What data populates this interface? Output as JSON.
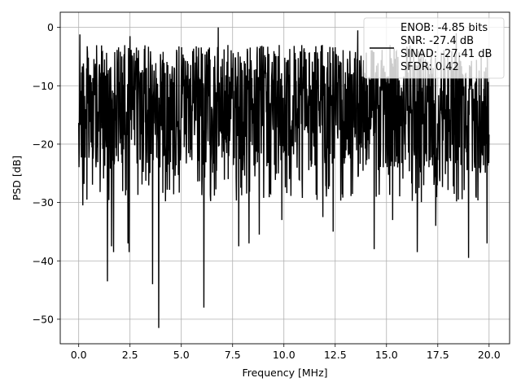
{
  "chart_data": {
    "type": "line",
    "xlabel": "Frequency [MHz]",
    "ylabel": "PSD [dB]",
    "xlim": [
      -0.9,
      21.0
    ],
    "ylim": [
      -54.2,
      2.6
    ],
    "xticks": [
      0.0,
      2.5,
      5.0,
      7.5,
      10.0,
      12.5,
      15.0,
      17.5,
      20.0
    ],
    "xtick_labels": [
      "0.0",
      "2.5",
      "5.0",
      "7.5",
      "10.0",
      "12.5",
      "15.0",
      "17.5",
      "20.0"
    ],
    "yticks": [
      0,
      -10,
      -20,
      -30,
      -40,
      -50
    ],
    "ytick_labels": [
      "0",
      "−10",
      "−20",
      "−30",
      "−40",
      "−50"
    ],
    "grid": true,
    "line_color": "#000000",
    "legend_position": "top-right",
    "legend_lines": [
      "ENOB: -4.85 bits",
      "SNR: -27.4 dB",
      "SINAD: -27.41 dB",
      "SFDR: 0.42"
    ],
    "series": [
      {
        "x_range": [
          0.0,
          20.0
        ],
        "baseline_db": -13,
        "upper_envelope_db": -3,
        "lower_envelope_db": -24,
        "peaks": [
          {
            "x": 0.05,
            "y": -1.2
          },
          {
            "x": 2.5,
            "y": -1.5
          },
          {
            "x": 6.8,
            "y": 0.0
          },
          {
            "x": 13.6,
            "y": -0.5
          },
          {
            "x": 18.4,
            "y": -1.0
          }
        ],
        "dips": [
          {
            "x": 0.2,
            "y": -30.5
          },
          {
            "x": 0.4,
            "y": -29.5
          },
          {
            "x": 1.4,
            "y": -43.5
          },
          {
            "x": 1.6,
            "y": -37.5
          },
          {
            "x": 1.7,
            "y": -38.5
          },
          {
            "x": 2.4,
            "y": -37.0
          },
          {
            "x": 2.45,
            "y": -38.5
          },
          {
            "x": 3.6,
            "y": -44.0
          },
          {
            "x": 3.9,
            "y": -51.5
          },
          {
            "x": 6.1,
            "y": -48.0
          },
          {
            "x": 7.8,
            "y": -37.5
          },
          {
            "x": 8.3,
            "y": -37.0
          },
          {
            "x": 8.8,
            "y": -35.5
          },
          {
            "x": 9.9,
            "y": -33.0
          },
          {
            "x": 11.9,
            "y": -32.5
          },
          {
            "x": 12.4,
            "y": -35.0
          },
          {
            "x": 14.4,
            "y": -38.0
          },
          {
            "x": 15.3,
            "y": -33.0
          },
          {
            "x": 16.5,
            "y": -38.5
          },
          {
            "x": 17.4,
            "y": -34.0
          },
          {
            "x": 19.0,
            "y": -39.5
          },
          {
            "x": 19.9,
            "y": -37.0
          }
        ]
      }
    ]
  }
}
